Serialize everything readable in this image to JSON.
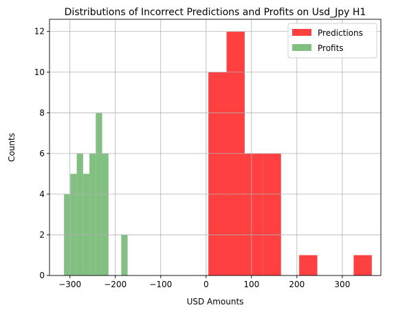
{
  "chart_data": {
    "type": "histogram",
    "title": "Distributions of Incorrect Predictions and Profits on Usd_Jpy H1",
    "xlabel": "USD Amounts",
    "ylabel": "Counts",
    "xlim": [
      -345,
      385
    ],
    "ylim": [
      0,
      12.6
    ],
    "xticks": [
      -300,
      -200,
      -100,
      0,
      100,
      200,
      300
    ],
    "xtick_labels": [
      "−300",
      "−200",
      "−100",
      "0",
      "100",
      "200",
      "300"
    ],
    "yticks": [
      0,
      2,
      4,
      6,
      8,
      10,
      12
    ],
    "ytick_labels": [
      "0",
      "2",
      "4",
      "6",
      "8",
      "10",
      "12"
    ],
    "grid": true,
    "legend_position": "top-right",
    "series": [
      {
        "name": "Predictions",
        "color": "#ff4040",
        "bins": [
          {
            "x0": 5,
            "x1": 45,
            "count": 10
          },
          {
            "x0": 45,
            "x1": 85,
            "count": 12
          },
          {
            "x0": 85,
            "x1": 125,
            "count": 6
          },
          {
            "x0": 125,
            "x1": 165,
            "count": 6
          },
          {
            "x0": 205,
            "x1": 245,
            "count": 1
          },
          {
            "x0": 325,
            "x1": 365,
            "count": 1
          }
        ]
      },
      {
        "name": "Profits",
        "color": "#82c082",
        "bins": [
          {
            "x0": -313,
            "x1": -299,
            "count": 4
          },
          {
            "x0": -299,
            "x1": -285,
            "count": 5
          },
          {
            "x0": -285,
            "x1": -271,
            "count": 6
          },
          {
            "x0": -271,
            "x1": -257,
            "count": 5
          },
          {
            "x0": -257,
            "x1": -243,
            "count": 6
          },
          {
            "x0": -243,
            "x1": -229,
            "count": 8
          },
          {
            "x0": -229,
            "x1": -215,
            "count": 6
          },
          {
            "x0": -187,
            "x1": -173,
            "count": 2
          }
        ]
      }
    ]
  }
}
